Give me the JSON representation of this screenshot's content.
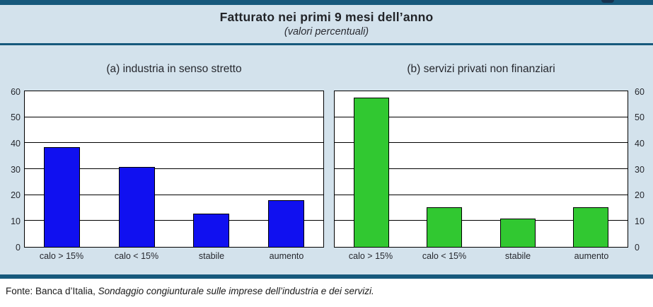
{
  "figure": {
    "title": "Fatturato nei primi 9 mesi dell’anno",
    "subtitle": "(valori percentuali)",
    "source_prefix": "Fonte: Banca d’Italia, ",
    "source_italic": "Sondaggio congiunturale sulle imprese dell’industria e dei servizi."
  },
  "colors": {
    "accent_teal": "#17597C",
    "panel_background": "#D3E2EC",
    "plot_background": "#FFFFFF",
    "bar_blue": "#1010F0",
    "bar_green": "#31C831",
    "axis_black": "#000000"
  },
  "chart_data": [
    {
      "type": "bar",
      "title": "(a) industria in senso stretto",
      "categories": [
        "calo > 15%",
        "calo < 15%",
        "stabile",
        "aumento"
      ],
      "values": [
        38.4,
        30.9,
        12.8,
        18.0
      ],
      "bar_color": "#1010F0",
      "ylim": [
        0,
        60
      ],
      "ytick_step": 10,
      "yticks": [
        0,
        10,
        20,
        30,
        40,
        50,
        60
      ],
      "yaxis_side": "left",
      "grid": true,
      "xlabel": "",
      "ylabel": ""
    },
    {
      "type": "bar",
      "title": "(b) servizi privati non finanziari",
      "categories": [
        "calo > 15%",
        "calo < 15%",
        "stabile",
        "aumento"
      ],
      "values": [
        57.5,
        15.4,
        10.8,
        15.4
      ],
      "bar_color": "#31C831",
      "ylim": [
        0,
        60
      ],
      "ytick_step": 10,
      "yticks": [
        0,
        10,
        20,
        30,
        40,
        50,
        60
      ],
      "yaxis_side": "right",
      "grid": true,
      "xlabel": "",
      "ylabel": ""
    }
  ]
}
